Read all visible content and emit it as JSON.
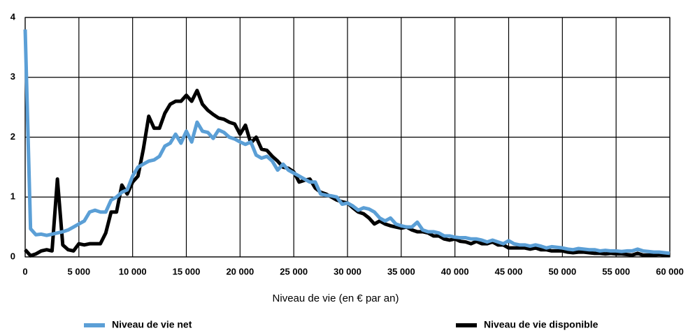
{
  "chart_data": {
    "type": "line",
    "x_label": "Niveau de vie (en € par an)",
    "x": [
      0,
      500,
      1000,
      1500,
      2000,
      2500,
      3000,
      3500,
      4000,
      4500,
      5000,
      5500,
      6000,
      6500,
      7000,
      7500,
      8000,
      8500,
      9000,
      9500,
      10000,
      10500,
      11000,
      11500,
      12000,
      12500,
      13000,
      13500,
      14000,
      14500,
      15000,
      15500,
      16000,
      16500,
      17000,
      17500,
      18000,
      18500,
      19000,
      19500,
      20000,
      20500,
      21000,
      21500,
      22000,
      22500,
      23000,
      23500,
      24000,
      24500,
      25000,
      25500,
      26000,
      26500,
      27000,
      27500,
      28000,
      28500,
      29000,
      29500,
      30000,
      30500,
      31000,
      31500,
      32000,
      32500,
      33000,
      33500,
      34000,
      34500,
      35000,
      35500,
      36000,
      36500,
      37000,
      37500,
      38000,
      38500,
      39000,
      39500,
      40000,
      40500,
      41000,
      41500,
      42000,
      42500,
      43000,
      43500,
      44000,
      44500,
      45000,
      45500,
      46000,
      46500,
      47000,
      47500,
      48000,
      48500,
      49000,
      49500,
      50000,
      50500,
      51000,
      51500,
      52000,
      52500,
      53000,
      53500,
      54000,
      54500,
      55000,
      55500,
      56000,
      56500,
      57000,
      57500,
      58000,
      58500,
      59000,
      59500,
      60000
    ],
    "series": [
      {
        "name": "Niveau de vie net",
        "color": "#5b9fd6",
        "values": [
          3.8,
          0.47,
          0.37,
          0.38,
          0.36,
          0.38,
          0.4,
          0.42,
          0.45,
          0.5,
          0.55,
          0.6,
          0.75,
          0.78,
          0.75,
          0.75,
          0.95,
          1.0,
          1.08,
          1.12,
          1.35,
          1.5,
          1.55,
          1.6,
          1.62,
          1.68,
          1.85,
          1.9,
          2.05,
          1.9,
          2.1,
          1.92,
          2.25,
          2.1,
          2.08,
          1.98,
          2.12,
          2.08,
          2.0,
          1.97,
          1.92,
          1.88,
          1.92,
          1.7,
          1.65,
          1.68,
          1.6,
          1.45,
          1.55,
          1.45,
          1.4,
          1.35,
          1.3,
          1.25,
          1.25,
          1.05,
          1.03,
          1.02,
          1.0,
          0.88,
          0.9,
          0.85,
          0.78,
          0.82,
          0.8,
          0.75,
          0.65,
          0.6,
          0.65,
          0.55,
          0.52,
          0.5,
          0.5,
          0.58,
          0.45,
          0.42,
          0.42,
          0.4,
          0.35,
          0.35,
          0.33,
          0.32,
          0.32,
          0.3,
          0.3,
          0.28,
          0.25,
          0.28,
          0.25,
          0.22,
          0.27,
          0.22,
          0.2,
          0.2,
          0.18,
          0.2,
          0.18,
          0.15,
          0.17,
          0.16,
          0.15,
          0.13,
          0.12,
          0.14,
          0.13,
          0.12,
          0.12,
          0.1,
          0.11,
          0.1,
          0.1,
          0.09,
          0.1,
          0.1,
          0.13,
          0.1,
          0.09,
          0.08,
          0.08,
          0.07,
          0.06
        ]
      },
      {
        "name": "Niveau de vie disponible",
        "color": "#000000",
        "values": [
          0.12,
          0.02,
          0.05,
          0.1,
          0.12,
          0.1,
          1.3,
          0.2,
          0.12,
          0.1,
          0.22,
          0.2,
          0.22,
          0.22,
          0.22,
          0.4,
          0.75,
          0.75,
          1.2,
          1.05,
          1.25,
          1.35,
          1.8,
          2.35,
          2.15,
          2.15,
          2.4,
          2.55,
          2.6,
          2.6,
          2.7,
          2.6,
          2.78,
          2.55,
          2.45,
          2.38,
          2.32,
          2.3,
          2.25,
          2.22,
          2.05,
          2.2,
          1.9,
          2.0,
          1.8,
          1.78,
          1.68,
          1.6,
          1.5,
          1.48,
          1.42,
          1.25,
          1.28,
          1.3,
          1.15,
          1.08,
          1.05,
          1.0,
          0.95,
          0.92,
          0.9,
          0.82,
          0.75,
          0.72,
          0.65,
          0.55,
          0.6,
          0.55,
          0.52,
          0.5,
          0.48,
          0.5,
          0.45,
          0.42,
          0.42,
          0.4,
          0.35,
          0.35,
          0.3,
          0.28,
          0.3,
          0.26,
          0.25,
          0.22,
          0.26,
          0.22,
          0.22,
          0.25,
          0.2,
          0.2,
          0.15,
          0.15,
          0.15,
          0.15,
          0.13,
          0.15,
          0.12,
          0.12,
          0.1,
          0.1,
          0.1,
          0.08,
          0.07,
          0.08,
          0.08,
          0.07,
          0.06,
          0.06,
          0.05,
          0.06,
          0.05,
          0.05,
          0.04,
          0.03,
          0.06,
          0.03,
          0.03,
          0.03,
          0.04,
          0.03,
          0.03
        ]
      }
    ],
    "xlim": [
      0,
      60000
    ],
    "xticks": [
      0,
      {
        "value": 5000,
        "label": "5 000"
      },
      {
        "value": 10000,
        "label": "10 000"
      },
      {
        "value": 15000,
        "label": "15 000"
      },
      {
        "value": 20000,
        "label": "20 000"
      },
      {
        "value": 25000,
        "label": "25 000"
      },
      {
        "value": 30000,
        "label": "30 000"
      },
      {
        "value": 35000,
        "label": "35 000"
      },
      {
        "value": 40000,
        "label": "40 000"
      },
      {
        "value": 45000,
        "label": "45 000"
      },
      {
        "value": 50000,
        "label": "50 000"
      },
      {
        "value": 55000,
        "label": "55 000"
      },
      {
        "value": 60000,
        "label": "60 000"
      }
    ],
    "ylim": [
      0,
      4
    ],
    "yticks": [
      0,
      1,
      2,
      3,
      4
    ],
    "grid": true,
    "legend": "bottom"
  }
}
